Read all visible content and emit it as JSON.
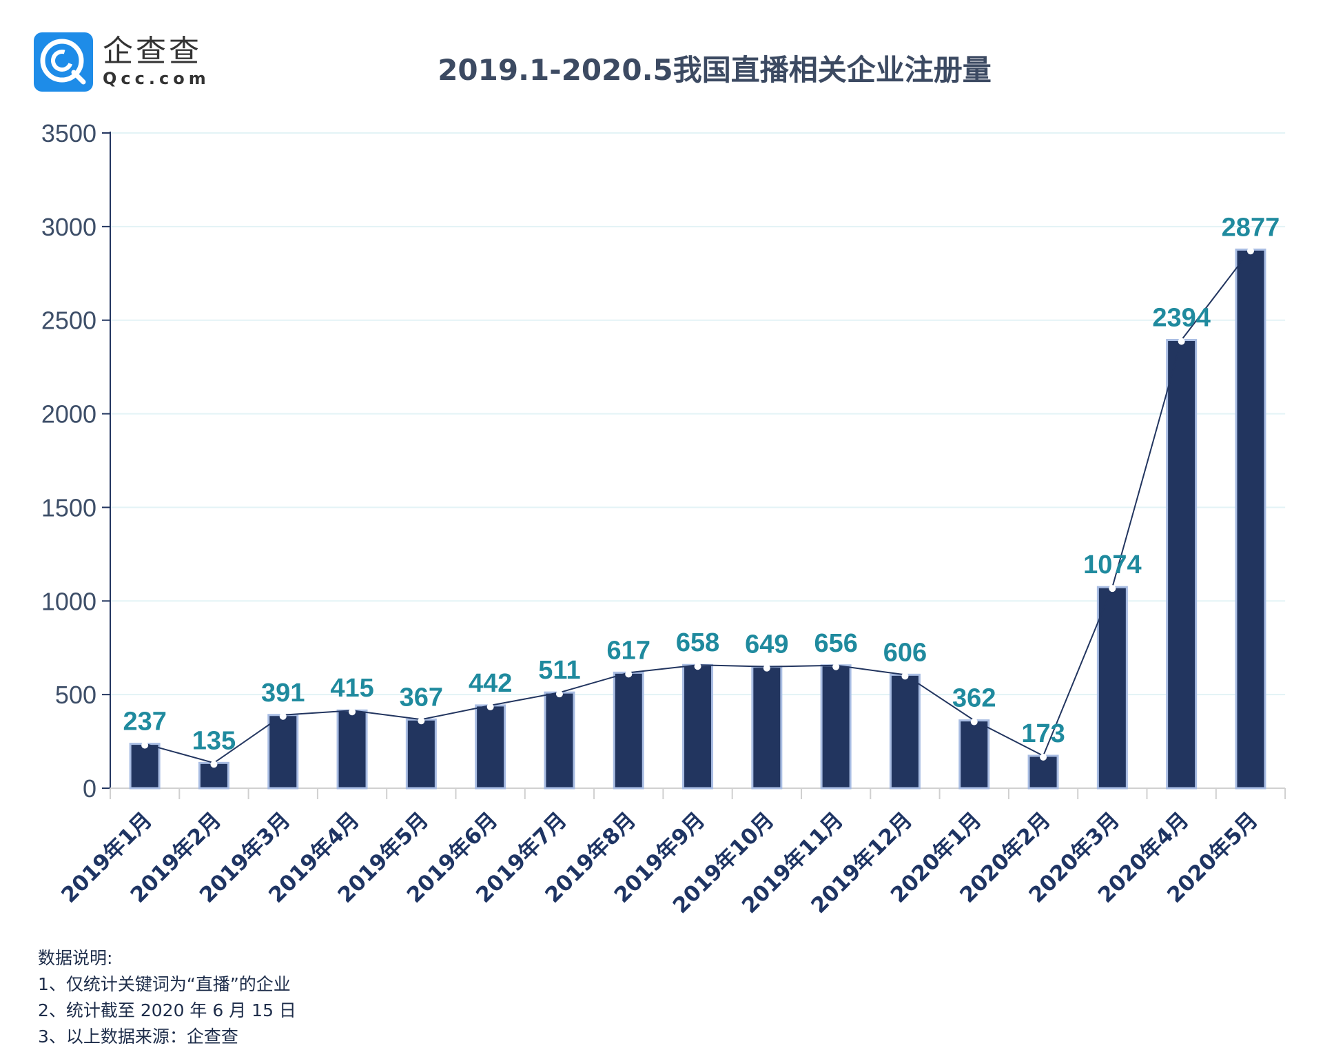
{
  "logo": {
    "cn": "企查查",
    "en": "Qcc.com",
    "color": "#1e8ce8"
  },
  "title": "2019.1-2020.5我国直播相关企业注册量",
  "chart_data": {
    "type": "bar",
    "title": "2019.1-2020.5我国直播相关企业注册量",
    "categories": [
      "2019年1月",
      "2019年2月",
      "2019年3月",
      "2019年4月",
      "2019年5月",
      "2019年6月",
      "2019年7月",
      "2019年8月",
      "2019年9月",
      "2019年10月",
      "2019年11月",
      "2019年12月",
      "2020年1月",
      "2020年2月",
      "2020年3月",
      "2020年4月",
      "2020年5月"
    ],
    "values": [
      237,
      135,
      391,
      415,
      367,
      442,
      511,
      617,
      658,
      649,
      656,
      606,
      362,
      173,
      1074,
      2394,
      2877
    ],
    "overlay_line": true,
    "ylim": [
      0,
      3500
    ],
    "yticks": [
      "0",
      "500",
      "1000",
      "1500",
      "2000",
      "2500",
      "3000",
      "3500"
    ],
    "grid": true,
    "colors": {
      "bar": "#22355f",
      "bar_border": "#a9bde3",
      "label": "#1f8a9e",
      "line": "#22355f"
    }
  },
  "notes": {
    "heading": "数据说明:",
    "items": [
      "1、仅统计关键词为“直播”的企业",
      "2、统计截至 2020 年 6 月 15 日",
      "3、以上数据来源：企查查"
    ]
  }
}
